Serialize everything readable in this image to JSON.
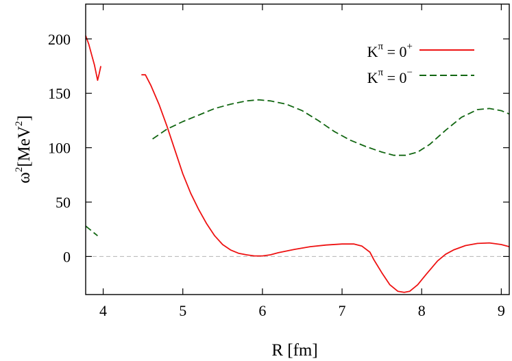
{
  "chart_data": {
    "type": "line",
    "xlabel": "R [fm]",
    "ylabel": {
      "base": "ω",
      "exp": "2",
      "unit_pre": "[MeV",
      "unit_exp": "2",
      "unit_post": "]"
    },
    "xlim": [
      3.78,
      9.1
    ],
    "ylim": [
      -35,
      232
    ],
    "xticks": [
      "4",
      "5",
      "6",
      "7",
      "8",
      "9"
    ],
    "yticks": [
      "0",
      "50",
      "100",
      "150",
      "200"
    ],
    "xtick_values": [
      4,
      5,
      6,
      7,
      8,
      9
    ],
    "ytick_values": [
      0,
      50,
      100,
      150,
      200
    ],
    "legend_position": "top-right",
    "zero_line": {
      "y": 0,
      "style": "dashed",
      "color": "#b4b4b4"
    },
    "series": [
      {
        "name": {
          "base": "K",
          "exp1": "π",
          "mid": " = 0",
          "exp2": "+"
        },
        "color": "#ee1111",
        "dash": "solid",
        "segments": [
          [
            [
              3.78,
              203
            ],
            [
              3.82,
              195
            ],
            [
              3.86,
              184
            ],
            [
              3.89,
              176
            ],
            [
              3.91,
              169
            ],
            [
              3.93,
              162
            ],
            [
              3.95,
              168
            ],
            [
              3.97,
              175
            ]
          ],
          [
            [
              4.48,
              167
            ],
            [
              4.53,
              167
            ],
            [
              4.6,
              157
            ],
            [
              4.7,
              140
            ],
            [
              4.8,
              120
            ],
            [
              4.9,
              98
            ],
            [
              5.0,
              76
            ],
            [
              5.1,
              58
            ],
            [
              5.2,
              43
            ],
            [
              5.3,
              30
            ],
            [
              5.4,
              19
            ],
            [
              5.5,
              11
            ],
            [
              5.6,
              6
            ],
            [
              5.7,
              3
            ],
            [
              5.8,
              1.5
            ],
            [
              5.9,
              0.5
            ],
            [
              6.0,
              0.5
            ],
            [
              6.1,
              1.5
            ],
            [
              6.2,
              3.5
            ],
            [
              6.4,
              6.5
            ],
            [
              6.6,
              9
            ],
            [
              6.8,
              10.5
            ],
            [
              7.0,
              11.5
            ],
            [
              7.15,
              11.5
            ],
            [
              7.25,
              9.5
            ],
            [
              7.35,
              4
            ],
            [
              7.4,
              -3
            ],
            [
              7.5,
              -15
            ],
            [
              7.6,
              -26
            ],
            [
              7.7,
              -32
            ],
            [
              7.78,
              -33
            ],
            [
              7.85,
              -32
            ],
            [
              7.95,
              -26
            ],
            [
              8.05,
              -17
            ],
            [
              8.2,
              -4
            ],
            [
              8.3,
              2
            ],
            [
              8.4,
              6
            ],
            [
              8.55,
              10
            ],
            [
              8.7,
              12
            ],
            [
              8.85,
              12.5
            ],
            [
              9.0,
              11
            ],
            [
              9.1,
              9
            ]
          ]
        ]
      },
      {
        "name": {
          "base": "K",
          "exp1": "π",
          "mid": " = 0",
          "exp2": "−"
        },
        "color": "#116611",
        "dash": "dashed",
        "segments": [
          [
            [
              3.78,
              28
            ],
            [
              3.83,
              25
            ],
            [
              3.88,
              22
            ],
            [
              3.93,
              19
            ]
          ],
          [
            [
              4.62,
              108
            ],
            [
              4.8,
              117
            ],
            [
              5.0,
              124
            ],
            [
              5.2,
              130
            ],
            [
              5.4,
              136
            ],
            [
              5.6,
              140
            ],
            [
              5.8,
              143
            ],
            [
              5.95,
              144
            ],
            [
              6.1,
              143
            ],
            [
              6.3,
              140
            ],
            [
              6.5,
              134
            ],
            [
              6.7,
              125
            ],
            [
              6.9,
              115
            ],
            [
              7.1,
              107
            ],
            [
              7.3,
              101
            ],
            [
              7.5,
              96
            ],
            [
              7.65,
              93
            ],
            [
              7.8,
              93
            ],
            [
              7.95,
              96
            ],
            [
              8.1,
              103
            ],
            [
              8.3,
              116
            ],
            [
              8.5,
              128
            ],
            [
              8.7,
              135
            ],
            [
              8.85,
              136
            ],
            [
              9.0,
              134
            ],
            [
              9.1,
              131
            ]
          ]
        ]
      }
    ]
  }
}
